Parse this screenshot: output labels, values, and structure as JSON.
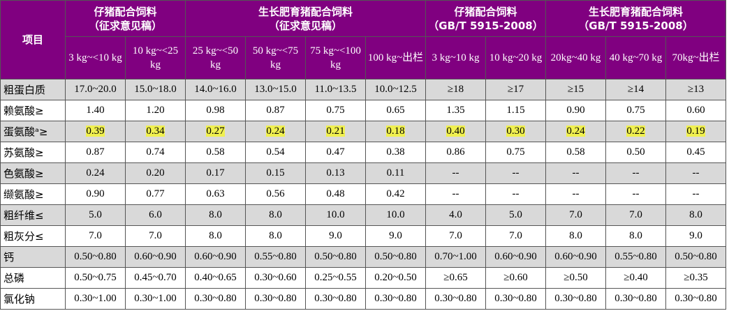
{
  "header": {
    "item_label": "项目",
    "groups": [
      {
        "lines": [
          "仔猪配合饲料",
          "（征求意见稿）"
        ],
        "span": 2
      },
      {
        "lines": [
          "生长肥育猪配合饲料",
          "（征求意见稿）"
        ],
        "span": 4
      },
      {
        "lines": [
          "仔猪配合饲料",
          "（GB/T 5915-2008）"
        ],
        "span": 2
      },
      {
        "lines": [
          "生长肥育猪配合饲料",
          "（GB/T 5915-2008）"
        ],
        "span": 3
      }
    ],
    "columns": [
      "3 kg~<10 kg",
      "10 kg~<25 kg",
      "25 kg~<50 kg",
      "50 kg~<75 kg",
      "75 kg~<100 kg",
      "100 kg~出栏",
      "3 kg~10 kg",
      "10 kg~20 kg",
      "20kg~40 kg",
      "40 kg~70 kg",
      "70kg~出栏"
    ]
  },
  "rows": [
    {
      "label": "粗蛋白质",
      "shaded": true,
      "cells": [
        "17.0~20.0",
        "15.0~18.0",
        "14.0~16.0",
        "13.0~15.0",
        "11.0~13.5",
        "10.0~12.5",
        "≥18",
        "≥17",
        "≥15",
        "≥14",
        "≥13"
      ]
    },
    {
      "label": "赖氨酸≥",
      "shaded": false,
      "cells": [
        "1.40",
        "1.20",
        "0.98",
        "0.87",
        "0.75",
        "0.65",
        "1.35",
        "1.15",
        "0.90",
        "0.75",
        "0.60"
      ]
    },
    {
      "label": "蛋氨酸ᵃ≥",
      "shaded": true,
      "highlight": true,
      "cells": [
        "0.39",
        "0.34",
        "0.27",
        "0.24",
        "0.21",
        "0.18",
        "0.40",
        "0.30",
        "0.24",
        "0.22",
        "0.19"
      ]
    },
    {
      "label": "苏氨酸≥",
      "shaded": false,
      "cells": [
        "0.87",
        "0.74",
        "0.58",
        "0.54",
        "0.47",
        "0.38",
        "0.86",
        "0.75",
        "0.58",
        "0.50",
        "0.45"
      ]
    },
    {
      "label": "色氨酸≥",
      "shaded": true,
      "cells": [
        "0.24",
        "0.20",
        "0.17",
        "0.15",
        "0.13",
        "0.11",
        "--",
        "--",
        "--",
        "--",
        "--"
      ]
    },
    {
      "label": "缬氨酸≥",
      "shaded": false,
      "cells": [
        "0.90",
        "0.77",
        "0.63",
        "0.56",
        "0.48",
        "0.42",
        "--",
        "--",
        "--",
        "--",
        "--"
      ]
    },
    {
      "label": "粗纤维≤",
      "shaded": true,
      "cells": [
        "5.0",
        "6.0",
        "8.0",
        "8.0",
        "10.0",
        "10.0",
        "4.0",
        "5.0",
        "7.0",
        "7.0",
        "8.0"
      ]
    },
    {
      "label": "粗灰分≤",
      "shaded": false,
      "cells": [
        "7.0",
        "7.0",
        "8.0",
        "8.0",
        "9.0",
        "9.0",
        "7.0",
        "7.0",
        "8.0",
        "8.0",
        "9.0"
      ]
    },
    {
      "label": "钙",
      "shaded": true,
      "cells": [
        "0.50~0.80",
        "0.60~0.90",
        "0.60~0.90",
        "0.55~0.80",
        "0.50~0.80",
        "0.50~0.80",
        "0.70~1.00",
        "0.60~0.90",
        "0.60~0.90",
        "0.55~0.80",
        "0.50~0.80"
      ]
    },
    {
      "label": "总磷",
      "shaded": false,
      "cells": [
        "0.50~0.75",
        "0.45~0.70",
        "0.40~0.65",
        "0.30~0.60",
        "0.25~0.55",
        "0.20~0.50",
        "≥0.65",
        "≥0.60",
        "≥0.50",
        "≥0.40",
        "≥0.35"
      ]
    },
    {
      "label": "氯化钠",
      "shaded": false,
      "cells": [
        "0.30~1.00",
        "0.30~1.00",
        "0.30~0.80",
        "0.30~0.80",
        "0.30~0.80",
        "0.30~0.80",
        "0.30~0.80",
        "0.30~0.80",
        "0.30~0.80",
        "0.30~0.80",
        "0.30~0.80"
      ]
    }
  ]
}
